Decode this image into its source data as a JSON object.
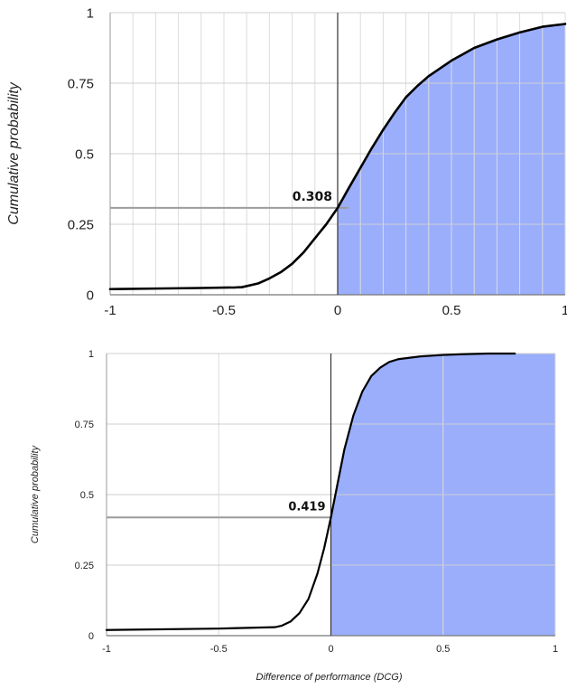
{
  "chart_data": [
    {
      "type": "area",
      "xlabel": "",
      "ylabel": "Cumulative probability",
      "xlim": [
        -1,
        1
      ],
      "ylim": [
        0,
        1
      ],
      "xticks": [
        "-1",
        "-0.5",
        "0",
        "0.5",
        "1"
      ],
      "yticks": [
        "0",
        "0.25",
        "0.5",
        "0.75",
        "1"
      ],
      "grid": true,
      "colors": {
        "fill": "#9aaefc",
        "line": "#000000",
        "marker": "#9c9c9c"
      },
      "fill_from_x": 0,
      "annotation": {
        "x": 0,
        "y": 0.308,
        "label": "0.308"
      },
      "series": [
        {
          "x": [
            -1,
            -0.8,
            -0.6,
            -0.45,
            -0.42,
            -0.35,
            -0.3,
            -0.25,
            -0.2,
            -0.15,
            -0.1,
            -0.05,
            0,
            0.05,
            0.1,
            0.15,
            0.2,
            0.25,
            0.3,
            0.35,
            0.4,
            0.5,
            0.6,
            0.7,
            0.8,
            0.9,
            1.0
          ],
          "y": [
            0.02,
            0.022,
            0.024,
            0.026,
            0.027,
            0.04,
            0.058,
            0.08,
            0.11,
            0.15,
            0.2,
            0.25,
            0.308,
            0.38,
            0.45,
            0.52,
            0.585,
            0.645,
            0.7,
            0.74,
            0.775,
            0.83,
            0.875,
            0.905,
            0.93,
            0.95,
            0.96
          ]
        }
      ]
    },
    {
      "type": "area",
      "xlabel": "Difference of performance (DCG)",
      "ylabel": "Cumulative probability",
      "xlim": [
        -1,
        1
      ],
      "ylim": [
        0,
        1
      ],
      "xticks": [
        "-1",
        "-0.5",
        "0",
        "0.5",
        "1"
      ],
      "yticks": [
        "0",
        "0.25",
        "0.5",
        "0.75",
        "1"
      ],
      "grid": true,
      "colors": {
        "fill": "#9aaefc",
        "line": "#000000",
        "marker": "#9c9c9c"
      },
      "fill_from_x": 0,
      "annotation": {
        "x": 0,
        "y": 0.419,
        "label": "0.419"
      },
      "series": [
        {
          "x": [
            -1,
            -0.5,
            -0.25,
            -0.22,
            -0.18,
            -0.14,
            -0.1,
            -0.06,
            -0.03,
            0,
            0.03,
            0.06,
            0.1,
            0.14,
            0.18,
            0.22,
            0.26,
            0.3,
            0.4,
            0.5,
            0.6,
            0.7,
            0.82
          ],
          "y": [
            0.02,
            0.025,
            0.03,
            0.035,
            0.05,
            0.08,
            0.13,
            0.22,
            0.31,
            0.419,
            0.54,
            0.66,
            0.78,
            0.865,
            0.92,
            0.95,
            0.97,
            0.98,
            0.99,
            0.995,
            0.998,
            1.0,
            1.0
          ]
        }
      ]
    }
  ]
}
